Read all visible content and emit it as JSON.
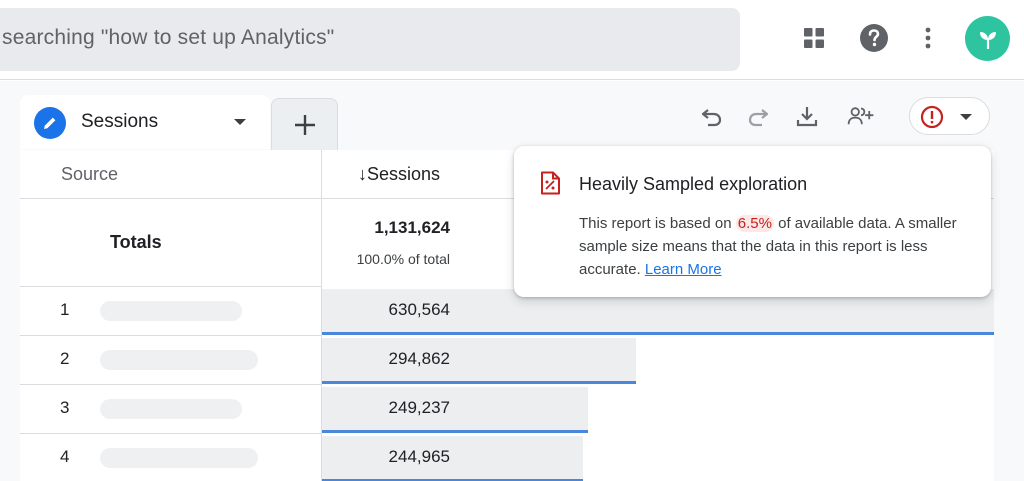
{
  "search": {
    "value": "searching \"how to set up Analytics\""
  },
  "header": {
    "icons": [
      "apps-grid-icon",
      "help-icon",
      "more-vert-icon",
      "avatar"
    ],
    "avatar_color": "#2ec4a0"
  },
  "tabs": {
    "active_label": "Sessions",
    "active_icon": "pencil-icon",
    "add_icon": "plus-icon"
  },
  "toolbar": {
    "icons": [
      "undo-icon",
      "redo-icon",
      "download-icon",
      "share-icon",
      "warning-icon"
    ]
  },
  "table": {
    "headers": {
      "source": "Source",
      "sessions": "Sessions",
      "sort_glyph": "↓"
    },
    "totals": {
      "label": "Totals",
      "value": "1,131,624",
      "pct": "100.0% of total"
    },
    "rows": [
      {
        "index": "1",
        "value": "630,564",
        "bar_fraction": 1.0
      },
      {
        "index": "2",
        "value": "294,862",
        "bar_fraction": 0.4676
      },
      {
        "index": "3",
        "value": "249,237",
        "bar_fraction": 0.3953
      },
      {
        "index": "4",
        "value": "244,965",
        "bar_fraction": 0.3885
      }
    ]
  },
  "popover": {
    "title": "Heavily Sampled exploration",
    "body_before": "This report is based on",
    "highlight": "6.5%",
    "body_after": "of available data. A smaller sample size means that the data in this report is less accurate.",
    "link": "Learn More",
    "accent_color": "#c5221f"
  }
}
